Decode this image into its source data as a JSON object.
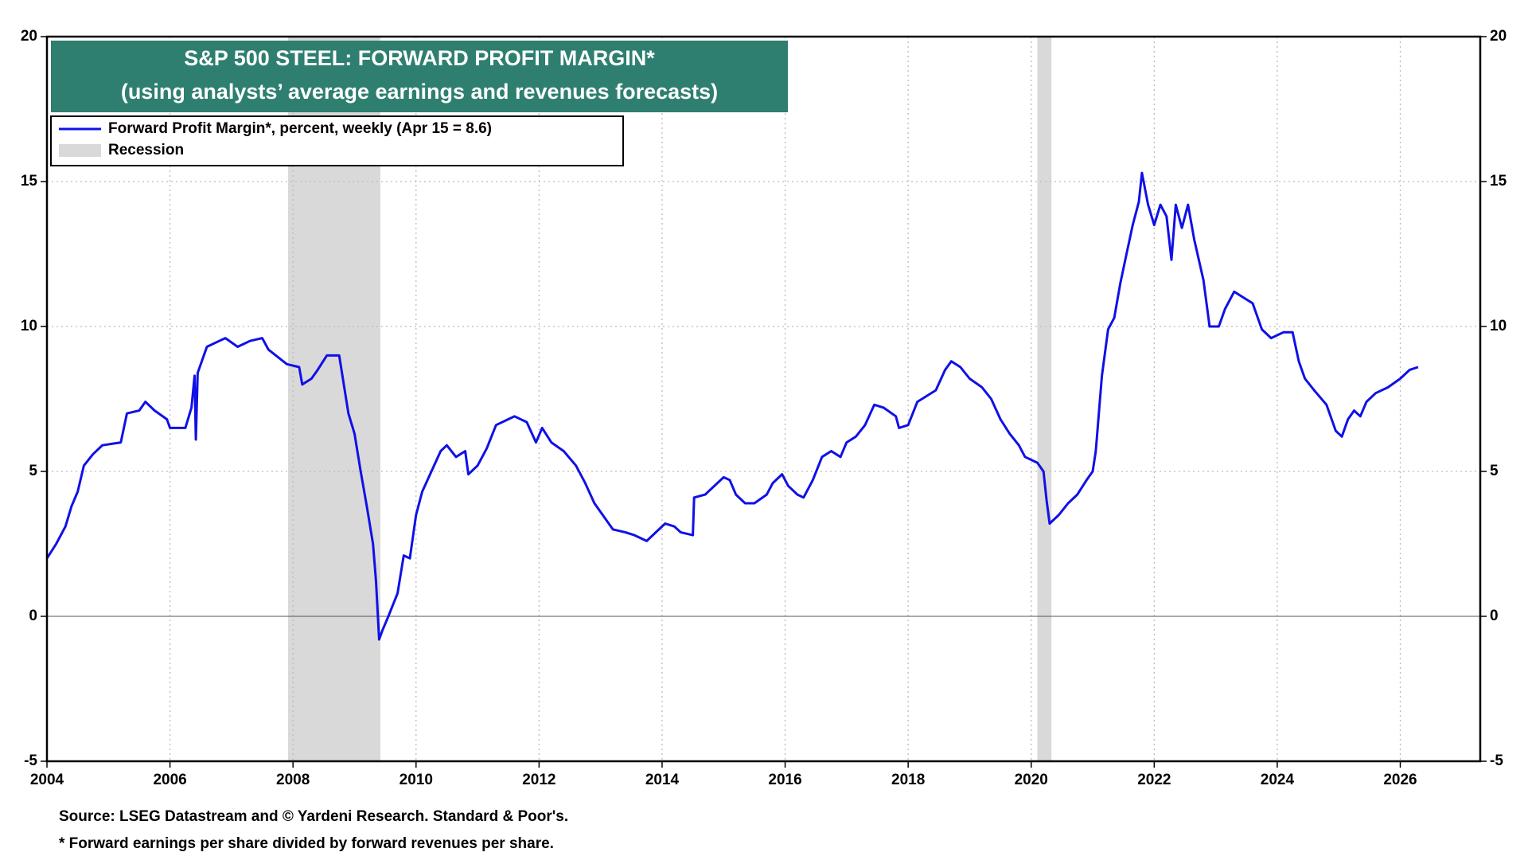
{
  "chart_data": {
    "type": "line",
    "title": "S&P 500 STEEL: FORWARD PROFIT MARGIN*",
    "subtitle": "(using analysts’ average earnings and revenues forecasts)",
    "source": "Source: LSEG Datastream and © Yardeni Research. Standard & Poor's.",
    "note": "* Forward earnings per share divided by forward revenues per share.",
    "x": [
      2004.0,
      2004.15,
      2004.3,
      2004.4,
      2004.5,
      2004.6,
      2004.75,
      2004.9,
      2005.2,
      2005.3,
      2005.5,
      2005.6,
      2005.75,
      2005.95,
      2006.0,
      2006.25,
      2006.35,
      2006.4,
      2006.42,
      2006.45,
      2006.6,
      2006.8,
      2006.9,
      2007.1,
      2007.3,
      2007.5,
      2007.6,
      2007.9,
      2008.1,
      2008.15,
      2008.3,
      2008.4,
      2008.55,
      2008.75,
      2008.9,
      2009.0,
      2009.1,
      2009.2,
      2009.3,
      2009.35,
      2009.4,
      2009.45,
      2009.55,
      2009.7,
      2009.8,
      2009.9,
      2010.0,
      2010.1,
      2010.25,
      2010.4,
      2010.5,
      2010.65,
      2010.8,
      2010.85,
      2011.0,
      2011.15,
      2011.3,
      2011.5,
      2011.6,
      2011.8,
      2011.95,
      2012.05,
      2012.2,
      2012.4,
      2012.6,
      2012.75,
      2012.9,
      2013.0,
      2013.2,
      2013.4,
      2013.55,
      2013.75,
      2013.9,
      2014.05,
      2014.2,
      2014.3,
      2014.5,
      2014.52,
      2014.7,
      2014.9,
      2015.0,
      2015.1,
      2015.2,
      2015.35,
      2015.5,
      2015.7,
      2015.8,
      2015.95,
      2016.05,
      2016.2,
      2016.3,
      2016.45,
      2016.6,
      2016.75,
      2016.9,
      2017.0,
      2017.15,
      2017.3,
      2017.45,
      2017.6,
      2017.8,
      2017.85,
      2018.0,
      2018.15,
      2018.3,
      2018.45,
      2018.6,
      2018.7,
      2018.85,
      2019.0,
      2019.2,
      2019.35,
      2019.5,
      2019.65,
      2019.8,
      2019.9,
      2020.1,
      2020.2,
      2020.25,
      2020.3,
      2020.45,
      2020.6,
      2020.75,
      2020.9,
      2021.0,
      2021.05,
      2021.15,
      2021.25,
      2021.35,
      2021.45,
      2021.55,
      2021.65,
      2021.75,
      2021.8,
      2021.9,
      2022.0,
      2022.1,
      2022.2,
      2022.28,
      2022.35,
      2022.45,
      2022.55,
      2022.65,
      2022.8,
      2022.9,
      2023.05,
      2023.15,
      2023.3,
      2023.45,
      2023.6,
      2023.75,
      2023.9,
      2024.1,
      2024.25,
      2024.35,
      2024.45,
      2024.6,
      2024.8,
      2024.95,
      2025.05,
      2025.15,
      2025.25,
      2025.35,
      2025.45,
      2025.6,
      2025.8,
      2026.0,
      2026.15,
      2026.29
    ],
    "series": [
      {
        "name": "Forward Profit Margin*, percent, weekly (Apr 15 = 8.6)",
        "color": "#1010e8",
        "values": [
          2.0,
          2.5,
          3.1,
          3.8,
          4.3,
          5.2,
          5.6,
          5.9,
          6.0,
          7.0,
          7.1,
          7.4,
          7.1,
          6.8,
          6.5,
          6.5,
          7.2,
          8.3,
          6.1,
          8.4,
          9.3,
          9.5,
          9.6,
          9.3,
          9.5,
          9.6,
          9.2,
          8.7,
          8.6,
          8.0,
          8.2,
          8.5,
          9.0,
          9.0,
          7.0,
          6.3,
          5.0,
          3.8,
          2.5,
          1.2,
          -0.8,
          -0.5,
          0.0,
          0.8,
          2.1,
          2.0,
          3.5,
          4.3,
          5.0,
          5.7,
          5.9,
          5.5,
          5.7,
          4.9,
          5.2,
          5.8,
          6.6,
          6.8,
          6.9,
          6.7,
          6.0,
          6.5,
          6.0,
          5.7,
          5.2,
          4.6,
          3.9,
          3.6,
          3.0,
          2.9,
          2.8,
          2.6,
          2.9,
          3.2,
          3.1,
          2.9,
          2.8,
          4.1,
          4.2,
          4.6,
          4.8,
          4.7,
          4.2,
          3.9,
          3.9,
          4.2,
          4.6,
          4.9,
          4.5,
          4.2,
          4.1,
          4.7,
          5.5,
          5.7,
          5.5,
          6.0,
          6.2,
          6.6,
          7.3,
          7.2,
          6.9,
          6.5,
          6.6,
          7.4,
          7.6,
          7.8,
          8.5,
          8.8,
          8.6,
          8.2,
          7.9,
          7.5,
          6.8,
          6.3,
          5.9,
          5.5,
          5.3,
          5.0,
          4.0,
          3.2,
          3.5,
          3.9,
          4.2,
          4.7,
          5.0,
          5.7,
          8.3,
          9.9,
          10.3,
          11.5,
          12.5,
          13.5,
          14.3,
          15.3,
          14.2,
          13.5,
          14.2,
          13.8,
          12.3,
          14.2,
          13.4,
          14.2,
          13.0,
          11.6,
          10.0,
          10.0,
          10.6,
          11.2,
          11.0,
          10.8,
          9.9,
          9.6,
          9.8,
          9.8,
          8.8,
          8.2,
          7.8,
          7.3,
          6.4,
          6.2,
          6.8,
          7.1,
          6.9,
          7.4,
          7.7,
          7.9,
          8.2,
          8.5,
          8.6
        ]
      }
    ],
    "recession_label": "Recession",
    "recession_color": "#d9d9d9",
    "recessions": [
      [
        2007.92,
        2009.42
      ],
      [
        2020.1,
        2020.33
      ]
    ],
    "xlim": [
      2004,
      2027.3
    ],
    "xticks": [
      2004,
      2006,
      2008,
      2010,
      2012,
      2014,
      2016,
      2018,
      2020,
      2022,
      2024,
      2026
    ],
    "ylim": [
      -5,
      20
    ],
    "yticks": [
      -5,
      0,
      5,
      10,
      15,
      20
    ],
    "grid": true
  }
}
